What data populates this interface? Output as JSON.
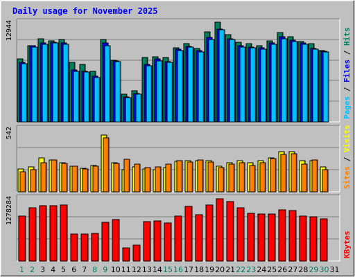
{
  "chart_data": {
    "type": "bar",
    "title": "Daily usage for November 2025",
    "categories": [
      "1",
      "2",
      "3",
      "4",
      "5",
      "6",
      "7",
      "8",
      "9",
      "10",
      "11",
      "12",
      "13",
      "14",
      "15",
      "16",
      "17",
      "18",
      "19",
      "20",
      "21",
      "22",
      "23",
      "24",
      "25",
      "26",
      "27",
      "28",
      "29",
      "30",
      "31"
    ],
    "weekend_days": [
      "1",
      "2",
      "8",
      "9",
      "15",
      "16",
      "22",
      "23",
      "29",
      "30"
    ],
    "colors": {
      "background": "#c0c0c0",
      "hits": "#00805c",
      "files": "#0000ff",
      "pages": "#00c0ff",
      "visits": "#ffff00",
      "sites": "#ff8000",
      "kbytes": "#ff0000",
      "weekend_tick": "#00805c",
      "weekday_tick": "#000000",
      "title": "#0000ff"
    },
    "panels": [
      {
        "id": "hits-files-pages",
        "ytick": "12944",
        "ymax": 12944,
        "right_label": [
          {
            "text": "Pages",
            "color": "#00c0ff"
          },
          {
            "text": " / ",
            "color": "#000000"
          },
          {
            "text": "Files",
            "color": "#0000ff"
          },
          {
            "text": " / ",
            "color": "#000000"
          },
          {
            "text": "Hits",
            "color": "#00805c"
          }
        ],
        "series": [
          {
            "name": "Hits",
            "color": "#00805c",
            "values": [
              8200,
              10000,
              10900,
              10600,
              10800,
              7800,
              7500,
              6600,
              10800,
              8100,
              3600,
              4100,
              8400,
              8500,
              8400,
              9700,
              10200,
              9600,
              11800,
              13000,
              11400,
              10400,
              10200,
              10000,
              10600,
              11700,
              11100,
              10500,
              10200,
              9300,
              null
            ]
          },
          {
            "name": "Files",
            "color": "#0000ff",
            "values": [
              7800,
              10000,
              10300,
              10400,
              10300,
              6800,
              6600,
              6000,
              10300,
              8000,
              3300,
              3700,
              7500,
              8200,
              7900,
              9500,
              9900,
              9300,
              11000,
              12100,
              10900,
              10000,
              9800,
              9700,
              10300,
              11100,
              10700,
              10300,
              9600,
              9200,
              null
            ]
          },
          {
            "name": "Pages",
            "color": "#00c0ff",
            "values": [
              7600,
              9800,
              10100,
              10300,
              10100,
              6600,
              6500,
              5800,
              10000,
              7900,
              3200,
              3600,
              7300,
              8000,
              7800,
              9300,
              9800,
              9100,
              10800,
              12000,
              10800,
              9800,
              9700,
              9500,
              10100,
              10900,
              10500,
              10100,
              9500,
              9100,
              null
            ]
          }
        ]
      },
      {
        "id": "visits-sites",
        "ytick": "542",
        "ymax": 542,
        "right_label": [
          {
            "text": "Sites",
            "color": "#ff8000"
          },
          {
            "text": " / ",
            "color": "#000000"
          },
          {
            "text": "Visits",
            "color": "#ffff00"
          }
        ],
        "series": [
          {
            "name": "Visits",
            "color": "#ffff00",
            "values": [
              200,
              215,
              295,
              280,
              250,
              220,
              205,
              230,
              495,
              255,
              195,
              215,
              200,
              195,
              210,
              265,
              270,
              270,
              270,
              220,
              250,
              270,
              250,
              270,
              295,
              350,
              350,
              270,
              270,
              215,
              null
            ]
          },
          {
            "name": "Sites",
            "color": "#ff8000",
            "values": [
              175,
              195,
              255,
              280,
              245,
              225,
              200,
              225,
              470,
              245,
              285,
              240,
              210,
              215,
              240,
              270,
              260,
              280,
              260,
              210,
              240,
              250,
              230,
              255,
              290,
              325,
              330,
              240,
              275,
              190,
              null
            ]
          }
        ]
      },
      {
        "id": "kbytes",
        "ytick": "1278284",
        "ymax": 1278284,
        "right_label": [
          {
            "text": "KBytes",
            "color": "#ff0000"
          }
        ],
        "series": [
          {
            "name": "KBytes",
            "color": "#ff0000",
            "values": [
              920000,
              1090000,
              1130000,
              1130000,
              1150000,
              560000,
              560000,
              570000,
              800000,
              850000,
              270000,
              330000,
              810000,
              820000,
              780000,
              920000,
              1120000,
              950000,
              1150000,
              1280000,
              1220000,
              1090000,
              980000,
              960000,
              960000,
              1050000,
              1040000,
              930000,
              910000,
              860000,
              null
            ]
          }
        ]
      }
    ]
  }
}
